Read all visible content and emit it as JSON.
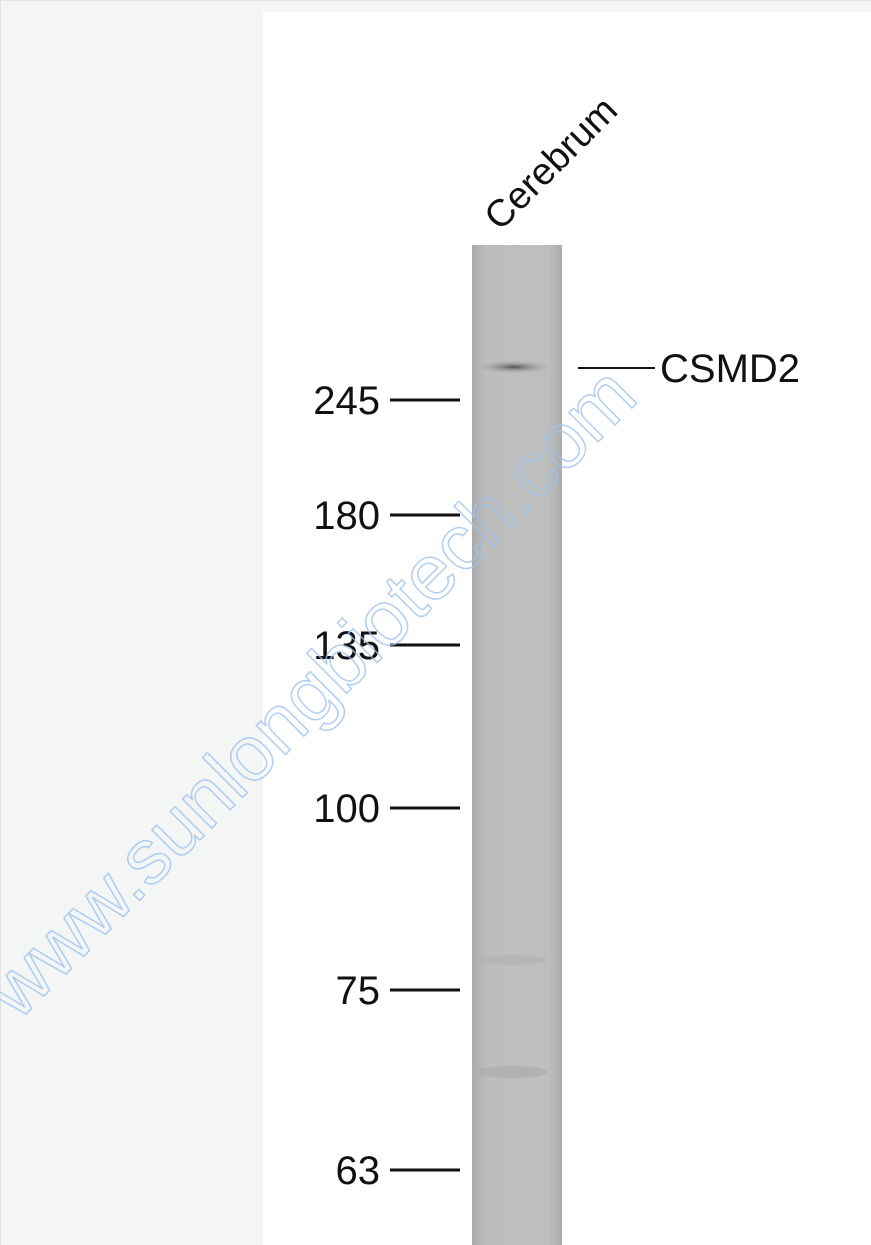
{
  "lane_label": "Cerebrum",
  "markers": [
    245,
    180,
    135,
    100,
    75,
    63
  ],
  "band_label": "CSMD2",
  "watermark": "www.sunlongbiotech.com"
}
